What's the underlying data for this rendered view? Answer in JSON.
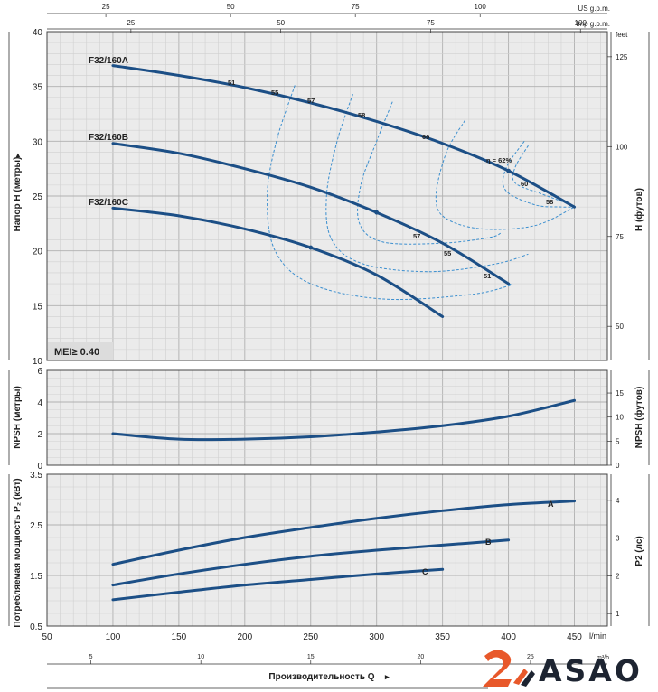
{
  "chart_data": [
    {
      "type": "line",
      "title": "",
      "xlabel": "Производительность Q",
      "ylabel": "Напор H (метры)",
      "ylabel_right": "H (футов)",
      "x_unit": "l/min",
      "xlim": [
        50,
        475
      ],
      "ylim": [
        10,
        40
      ],
      "y_ticks": [
        10,
        15,
        20,
        25,
        30,
        35,
        40
      ],
      "y2_unit": "feet",
      "y2_ticks": [
        50,
        75,
        100,
        125
      ],
      "x_top_scales": [
        {
          "unit": "US g.p.m.",
          "ticks": [
            25,
            50,
            75,
            100
          ]
        },
        {
          "unit": "Imp g.p.m.",
          "ticks": [
            25,
            50,
            75,
            100
          ]
        }
      ],
      "grid": true,
      "badge": "MEI≥ 0.40",
      "series": [
        {
          "name": "F32/160A",
          "x": [
            100,
            150,
            200,
            250,
            300,
            350,
            400,
            450
          ],
          "y": [
            36.9,
            36.0,
            34.9,
            33.5,
            31.8,
            29.8,
            27.3,
            24.0
          ]
        },
        {
          "name": "F32/160B",
          "x": [
            100,
            150,
            200,
            250,
            300,
            350,
            400
          ],
          "y": [
            29.8,
            28.9,
            27.5,
            25.8,
            23.5,
            20.7,
            17.0
          ]
        },
        {
          "name": "F32/160C",
          "x": [
            100,
            150,
            200,
            250,
            300,
            350
          ],
          "y": [
            23.9,
            23.2,
            22.0,
            20.3,
            17.8,
            14.0
          ]
        }
      ],
      "efficiency_labels": [
        "51",
        "55",
        "57",
        "58",
        "60",
        "η = 62%",
        "60",
        "58",
        "57",
        "55",
        "51"
      ]
    },
    {
      "type": "line",
      "ylabel": "NPSH (метры)",
      "ylabel_right": "NPSH (футов)",
      "ylim": [
        0,
        6
      ],
      "y_ticks": [
        0,
        2,
        4,
        6
      ],
      "y2_ticks": [
        0,
        5,
        10,
        15
      ],
      "grid": true,
      "series": [
        {
          "x": [
            100,
            150,
            200,
            250,
            300,
            350,
            400,
            450
          ],
          "y": [
            2.0,
            1.65,
            1.65,
            1.8,
            2.1,
            2.5,
            3.1,
            4.1
          ]
        }
      ]
    },
    {
      "type": "line",
      "ylabel": "Потребляемая мощность P₂ (кВт)",
      "ylabel_right": "P2 (лс)",
      "ylim": [
        0.5,
        3.5
      ],
      "y_ticks": [
        0.5,
        1.5,
        2.5,
        3.5
      ],
      "y2_ticks": [
        1,
        2,
        3,
        4
      ],
      "x_ticks": [
        50,
        100,
        150,
        200,
        250,
        300,
        350,
        400,
        450
      ],
      "x_unit": "l/min",
      "x_bottom_scale": {
        "unit": "m³/h",
        "ticks": [
          5,
          10,
          15,
          20,
          25
        ]
      },
      "grid": true,
      "series": [
        {
          "name": "A",
          "x": [
            100,
            150,
            200,
            250,
            300,
            350,
            400,
            450
          ],
          "y": [
            1.72,
            2.0,
            2.25,
            2.45,
            2.63,
            2.78,
            2.9,
            2.97
          ]
        },
        {
          "name": "B",
          "x": [
            100,
            150,
            200,
            250,
            300,
            350,
            400
          ],
          "y": [
            1.31,
            1.53,
            1.72,
            1.88,
            2.0,
            2.1,
            2.2
          ]
        },
        {
          "name": "C",
          "x": [
            100,
            150,
            200,
            250,
            300,
            350
          ],
          "y": [
            1.02,
            1.17,
            1.31,
            1.42,
            1.53,
            1.62
          ]
        }
      ]
    }
  ],
  "logo": {
    "text": "ASAO"
  },
  "colors": {
    "curve": "#1c4f86",
    "efficiency": "#3c8fcf",
    "grid_minor": "#d0d0d0",
    "grid_major": "#b0b0b0",
    "panel_bg": "#ebebeb",
    "logo_accent": "#e8582a"
  }
}
